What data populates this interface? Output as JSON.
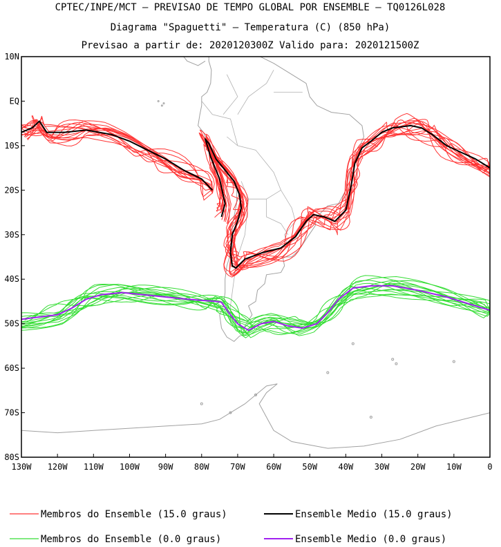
{
  "header": {
    "line1": "CPTEC/INPE/MCT – PREVISAO DE TEMPO GLOBAL POR ENSEMBLE – TQ0126L028",
    "line2": "Diagrama \"Spaguetti\" – Temperatura (C) (850 hPa)",
    "line3": "Previsao a partir de: 2020120300Z  Valido para: 2020121500Z"
  },
  "chart_data": {
    "type": "line",
    "title": "Diagrama \"Spaguetti\" – Temperatura (C) (850 hPa)",
    "xlabel": "",
    "ylabel": "",
    "xlim": [
      -130,
      0
    ],
    "ylim": [
      -80,
      10
    ],
    "x_ticks": [
      {
        "value": -130,
        "label": "130W"
      },
      {
        "value": -120,
        "label": "120W"
      },
      {
        "value": -110,
        "label": "110W"
      },
      {
        "value": -100,
        "label": "100W"
      },
      {
        "value": -90,
        "label": "90W"
      },
      {
        "value": -80,
        "label": "80W"
      },
      {
        "value": -70,
        "label": "70W"
      },
      {
        "value": -60,
        "label": "60W"
      },
      {
        "value": -50,
        "label": "50W"
      },
      {
        "value": -40,
        "label": "40W"
      },
      {
        "value": -30,
        "label": "30W"
      },
      {
        "value": -20,
        "label": "20W"
      },
      {
        "value": -10,
        "label": "10W"
      },
      {
        "value": 0,
        "label": "0"
      }
    ],
    "y_ticks": [
      {
        "value": 10,
        "label": "10N"
      },
      {
        "value": 0,
        "label": "EQ"
      },
      {
        "value": -10,
        "label": "10S"
      },
      {
        "value": -20,
        "label": "20S"
      },
      {
        "value": -30,
        "label": "30S"
      },
      {
        "value": -40,
        "label": "40S"
      },
      {
        "value": -50,
        "label": "50S"
      },
      {
        "value": -60,
        "label": "60S"
      },
      {
        "value": -70,
        "label": "70S"
      },
      {
        "value": -80,
        "label": "80S"
      }
    ],
    "series": [
      {
        "name": "Ensemble Medio (15.0 graus)",
        "color": "#000000",
        "members_color": "#ff3333",
        "member_count": 15,
        "segments": [
          [
            [
              -130,
              -7
            ],
            [
              -127,
              -6
            ],
            [
              -125,
              -4.5
            ],
            [
              -123,
              -7
            ],
            [
              -118,
              -7
            ],
            [
              -112,
              -6.5
            ],
            [
              -105,
              -7.5
            ],
            [
              -100,
              -9
            ],
            [
              -95,
              -11
            ],
            [
              -90,
              -13
            ],
            [
              -85,
              -15.5
            ],
            [
              -80,
              -17.5
            ],
            [
              -77,
              -20
            ]
          ],
          [
            [
              -74.5,
              -26
            ],
            [
              -73.5,
              -23
            ],
            [
              -75,
              -17.5
            ],
            [
              -77.5,
              -12.5
            ],
            [
              -79,
              -8.5
            ],
            [
              -78,
              -9.5
            ],
            [
              -76,
              -13
            ],
            [
              -73.5,
              -15.5
            ],
            [
              -71,
              -18
            ],
            [
              -69.5,
              -21
            ],
            [
              -69,
              -24
            ],
            [
              -70,
              -27
            ],
            [
              -71.5,
              -30
            ],
            [
              -72,
              -34
            ],
            [
              -71.5,
              -37
            ],
            [
              -70.5,
              -37.5
            ],
            [
              -68,
              -35.5
            ],
            [
              -63,
              -34
            ],
            [
              -58,
              -33
            ],
            [
              -54,
              -30.5
            ],
            [
              -51,
              -27
            ],
            [
              -49,
              -25.5
            ],
            [
              -46,
              -26
            ],
            [
              -43,
              -27
            ],
            [
              -40,
              -24.5
            ],
            [
              -38.5,
              -19
            ],
            [
              -37.5,
              -14
            ],
            [
              -35.5,
              -10.5
            ],
            [
              -33,
              -9
            ],
            [
              -30,
              -7
            ],
            [
              -27,
              -6
            ],
            [
              -22,
              -5.5
            ],
            [
              -19,
              -6
            ],
            [
              -16,
              -7.5
            ],
            [
              -12,
              -10
            ],
            [
              -8,
              -11.5
            ],
            [
              -4,
              -13
            ],
            [
              0,
              -15
            ]
          ]
        ]
      },
      {
        "name": "Ensemble Medio (0.0 graus)",
        "color": "#a020f0",
        "members_color": "#33dd33",
        "member_count": 15,
        "segments": [
          [
            [
              -130,
              -49
            ],
            [
              -125,
              -48.5
            ],
            [
              -120,
              -48
            ],
            [
              -116,
              -46.5
            ],
            [
              -112,
              -44.5
            ],
            [
              -108,
              -43.5
            ],
            [
              -102,
              -43
            ],
            [
              -96,
              -43.5
            ],
            [
              -90,
              -44
            ],
            [
              -84,
              -44.5
            ],
            [
              -79,
              -44.8
            ],
            [
              -76,
              -45
            ],
            [
              -74.5,
              -45.2
            ],
            [
              -72.5,
              -47.5
            ],
            [
              -70,
              -50
            ],
            [
              -67,
              -51.5
            ],
            [
              -63.5,
              -50
            ],
            [
              -60,
              -49.5
            ],
            [
              -56,
              -50.5
            ],
            [
              -52,
              -51
            ],
            [
              -48,
              -50
            ],
            [
              -45,
              -47.5
            ],
            [
              -42,
              -44.5
            ],
            [
              -38,
              -42
            ],
            [
              -33,
              -41.5
            ],
            [
              -27,
              -41.5
            ],
            [
              -20,
              -42.5
            ],
            [
              -12,
              -44
            ],
            [
              -6,
              -45.5
            ],
            [
              0,
              -47
            ]
          ]
        ]
      }
    ],
    "legend": [
      {
        "label": "Membros do Ensemble (15.0 graus)",
        "color": "#ff3333"
      },
      {
        "label": "Ensemble Medio (15.0 graus)",
        "color": "#000000"
      },
      {
        "label": "Membros do Ensemble (0.0 graus)",
        "color": "#33dd33"
      },
      {
        "label": "Ensemble Medio (0.0 graus)",
        "color": "#a020f0"
      }
    ],
    "legend_position": "bottom"
  }
}
